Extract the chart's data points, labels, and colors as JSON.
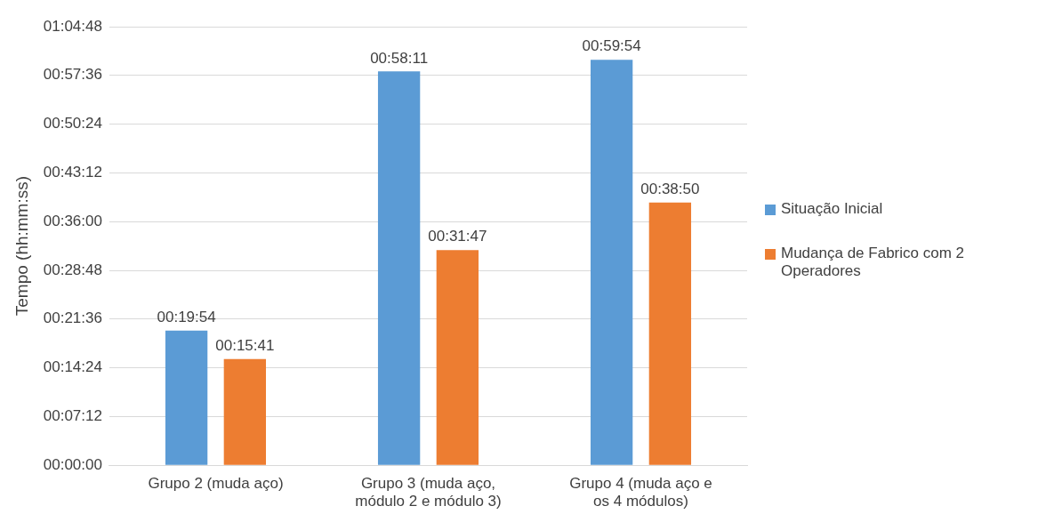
{
  "chart_data": {
    "type": "bar",
    "ylabel": "Tempo (hh:mm:ss)",
    "categories": [
      "Grupo 2 (muda aço)",
      "Grupo 3 (muda aço, módulo 2 e módulo 3)",
      "Grupo 4 (muda aço e os 4 módulos)"
    ],
    "series": [
      {
        "name": "Situação Inicial",
        "color": "#5b9bd5",
        "values": [
          1194,
          3491,
          3594
        ],
        "value_labels": [
          "00:19:54",
          "00:58:11",
          "00:59:54"
        ]
      },
      {
        "name": "Mudança de Fabrico com 2 Operadores",
        "color": "#ed7d31",
        "values": [
          941,
          1907,
          2330
        ],
        "value_labels": [
          "00:15:41",
          "00:31:47",
          "00:38:50"
        ]
      }
    ],
    "ylim": [
      0,
      3888
    ],
    "yticks": [
      {
        "value": 0,
        "label": "00:00:00"
      },
      {
        "value": 432,
        "label": "00:07:12"
      },
      {
        "value": 864,
        "label": "00:14:24"
      },
      {
        "value": 1296,
        "label": "00:21:36"
      },
      {
        "value": 1728,
        "label": "00:28:48"
      },
      {
        "value": 2160,
        "label": "00:36:00"
      },
      {
        "value": 2592,
        "label": "00:43:12"
      },
      {
        "value": 3024,
        "label": "00:50:24"
      },
      {
        "value": 3456,
        "label": "00:57:36"
      },
      {
        "value": 3888,
        "label": "01:04:48"
      }
    ],
    "grid": "y",
    "legend": "right"
  }
}
